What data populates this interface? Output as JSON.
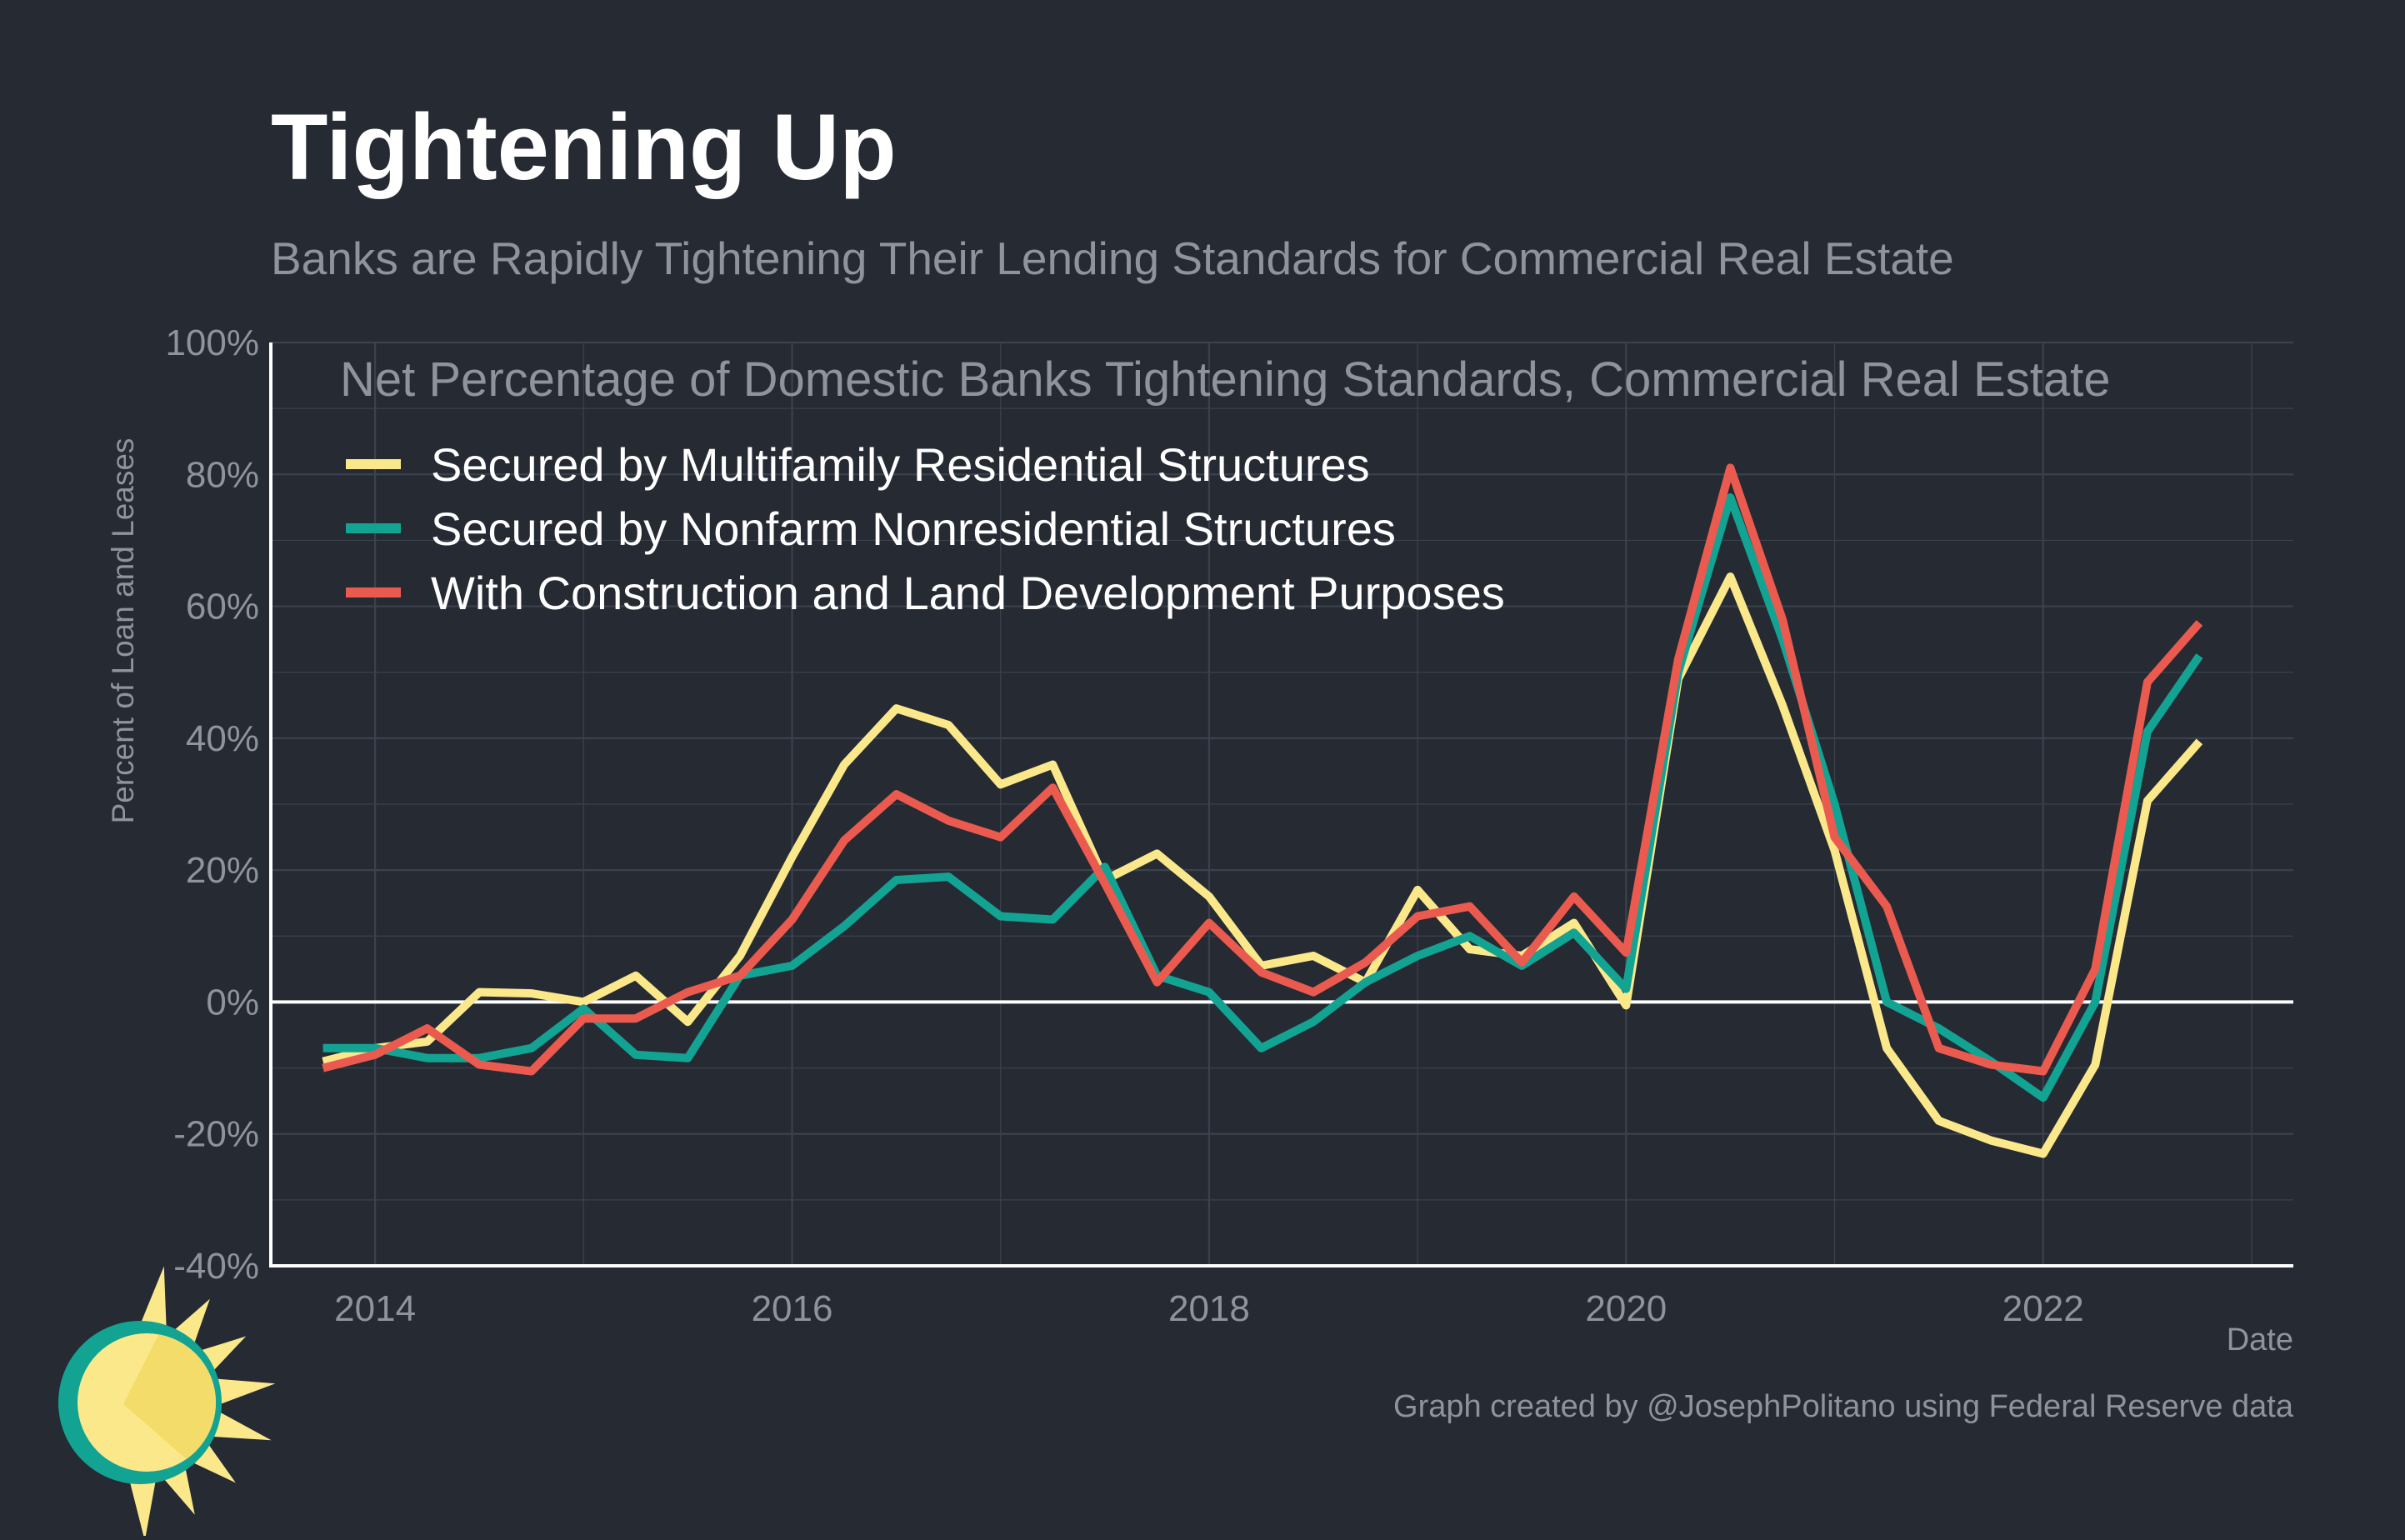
{
  "title": "Tightening Up",
  "subtitle": "Banks are Rapidly Tightening Their Lending Standards for Commercial Real Estate",
  "caption": "Graph created by @JosephPolitano using Federal Reserve data",
  "colors": {
    "background": "#252a33",
    "title": "#ffffff",
    "muted": "#8e939c",
    "grid": "#3c424d",
    "axis": "#ffffff",
    "legend_text": "#ffffff",
    "logo_ring": "#12a393",
    "logo_sun": "#fbe88a",
    "logo_sun_shade": "#f3dc6a"
  },
  "logo": {
    "icon": "sun-logo-icon"
  },
  "chart_data": {
    "type": "line",
    "title": "Net Percentage of Domestic Banks Tightening Standards, Commercial Real Estate",
    "xlabel": "Date",
    "ylabel": "Percent of Loan and Leases",
    "xlim": [
      2013.5,
      2023.2
    ],
    "ylim": [
      -40,
      100
    ],
    "x_ticks": [
      2014,
      2016,
      2018,
      2020,
      2022
    ],
    "x_tick_labels": [
      "2014",
      "2016",
      "2018",
      "2020",
      "2022"
    ],
    "y_ticks": [
      -40,
      -20,
      0,
      20,
      40,
      60,
      80,
      100
    ],
    "y_tick_labels": [
      "-40%",
      "-20%",
      "0%",
      "20%",
      "40%",
      "60%",
      "80%",
      "100%"
    ],
    "grid": true,
    "legend_position": "top-left",
    "x": [
      2013.75,
      2014.0,
      2014.25,
      2014.5,
      2014.75,
      2015.0,
      2015.25,
      2015.5,
      2015.75,
      2016.0,
      2016.25,
      2016.5,
      2016.75,
      2017.0,
      2017.25,
      2017.5,
      2017.75,
      2018.0,
      2018.25,
      2018.5,
      2018.75,
      2019.0,
      2019.25,
      2019.5,
      2019.75,
      2020.0,
      2020.25,
      2020.5,
      2020.75,
      2021.0,
      2021.25,
      2021.5,
      2021.75,
      2022.0,
      2022.25,
      2022.5,
      2022.75
    ],
    "series": [
      {
        "name": "Secured by Multifamily Residential Structures",
        "color": "#fbe88a",
        "values": [
          -9,
          -7,
          -6,
          1.5,
          1.3,
          0,
          4,
          -3,
          7,
          22,
          36,
          44.5,
          42,
          33,
          36,
          18.5,
          22.5,
          16,
          5.5,
          7,
          3,
          17,
          8,
          7,
          12,
          -0.5,
          49,
          64.5,
          45,
          23,
          -7,
          -18,
          -21,
          -23,
          -9.5,
          30.5,
          39.5
        ]
      },
      {
        "name": "Secured by Nonfarm Nonresidential Structures",
        "color": "#12a393",
        "values": [
          -7,
          -7,
          -8.5,
          -8.5,
          -7,
          -1,
          -8,
          -8.5,
          4,
          5.5,
          11.5,
          18.5,
          19,
          13,
          12.5,
          20.5,
          4,
          1.5,
          -7,
          -3,
          3,
          7,
          10,
          5.5,
          10.5,
          2,
          50,
          76.5,
          55,
          30,
          0,
          -4,
          -9,
          -14.5,
          0,
          41,
          52.5
        ]
      },
      {
        "name": "With Construction and Land Development Purposes",
        "color": "#ea5a4f",
        "values": [
          -10,
          -8,
          -4,
          -9.5,
          -10.5,
          -2.5,
          -2.5,
          1.5,
          4,
          12.5,
          24.5,
          31.5,
          27.5,
          25,
          32.5,
          18,
          3,
          12,
          4.5,
          1.5,
          6,
          13,
          14.5,
          6,
          16,
          7.5,
          52,
          81,
          58,
          25,
          14.5,
          -7,
          -9.5,
          -10.5,
          5,
          48.5,
          57.5
        ]
      }
    ]
  }
}
